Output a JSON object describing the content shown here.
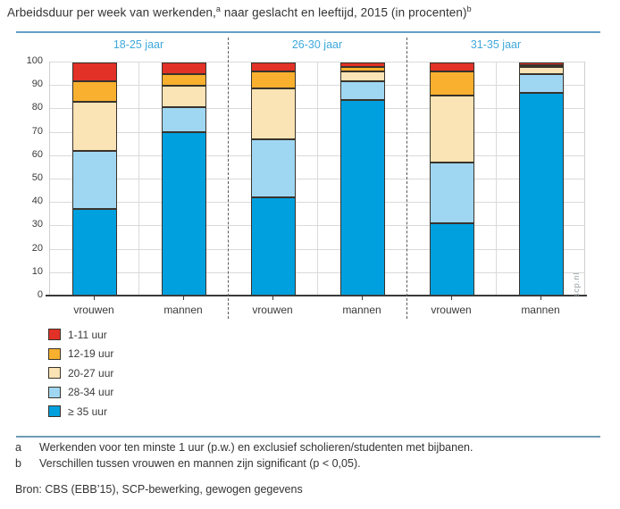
{
  "page": {
    "title_main": "Arbeidsduur per week van werkenden,",
    "title_sup_a": "a",
    "title_rest": " naar geslacht en leeftijd, 2015 (in procenten)",
    "title_sup_b": "b"
  },
  "watermark": "scp.nl",
  "chart_data": {
    "type": "bar",
    "stacked": true,
    "title": "Arbeidsduur per week van werkenden, naar geslacht en leeftijd, 2015 (in procenten)",
    "ylabel": "procenten",
    "ylim": [
      0,
      100
    ],
    "yticks": [
      0,
      10,
      20,
      30,
      40,
      50,
      60,
      70,
      80,
      90,
      100
    ],
    "grid": true,
    "legend_position": "bottom-left",
    "group_labels": [
      "18-25 jaar",
      "26-30 jaar",
      "31-35 jaar"
    ],
    "categories": [
      "vrouwen",
      "mannen",
      "vrouwen",
      "mannen",
      "vrouwen",
      "mannen"
    ],
    "series": [
      {
        "name": "1-11 uur",
        "color": "#e23127",
        "values": [
          8,
          5,
          4,
          2,
          4,
          1
        ]
      },
      {
        "name": "12-19 uur",
        "color": "#f9b02f",
        "values": [
          9,
          5,
          7,
          2,
          10,
          1
        ]
      },
      {
        "name": "20-27 uur",
        "color": "#fae3b4",
        "values": [
          21,
          9,
          22,
          4,
          29,
          3
        ]
      },
      {
        "name": "28-34 uur",
        "color": "#9fd7f3",
        "values": [
          25,
          11,
          25,
          8,
          26,
          8
        ]
      },
      {
        "name": "≥ 35 uur",
        "color": "#00a0df",
        "values": [
          37,
          70,
          42,
          84,
          31,
          87
        ]
      }
    ],
    "stack_order_bottom_to_top": [
      "≥ 35 uur",
      "28-34 uur",
      "20-27 uur",
      "12-19 uur",
      "1-11 uur"
    ]
  },
  "colors": {
    "group_label": "#3fa9dc",
    "rule": "#649fc4",
    "axis": "#3a3a3a",
    "gridline": "#dadada",
    "bar_border": "#39332b",
    "separator": "#5a5a5a",
    "watermark": "#9aa0a4"
  },
  "footnotes": [
    {
      "marker": "a",
      "text": "Werkenden voor ten minste 1 uur (p.w.) en exclusief scholieren/studenten met bijbanen."
    },
    {
      "marker": "b",
      "text": "Verschillen tussen vrouwen en mannen zijn significant (p < 0,05)."
    }
  ],
  "source": "Bron: CBS (EBB’15), SCP-bewerking, gewogen gegevens"
}
